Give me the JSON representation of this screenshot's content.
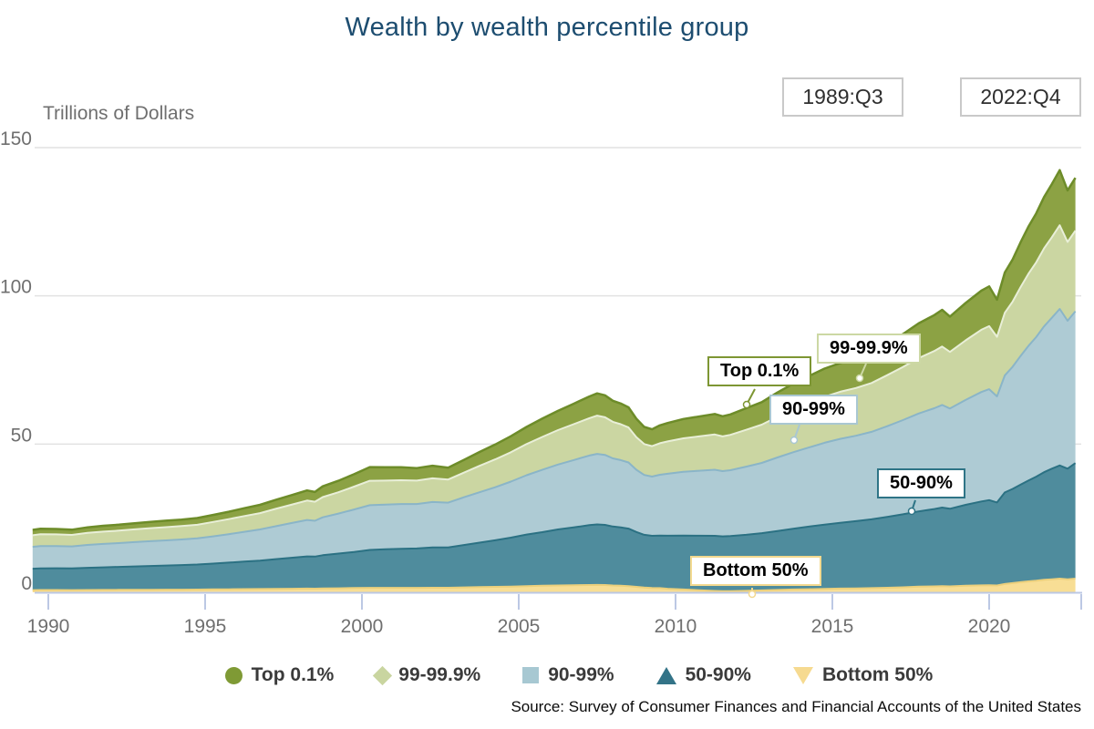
{
  "title": "Wealth by wealth percentile group",
  "controls": {
    "start_quarter": "1989:Q3",
    "end_quarter": "2022:Q4"
  },
  "unit_label": "Trillions of Dollars",
  "source_note": "Source: Survey of Consumer Finances and Financial Accounts of the United States",
  "colors": {
    "title_text": "#1d4d70",
    "axis_line": "#bcc8e4",
    "gridline": "#e2e2e2",
    "tick_text": "#6f6f6f"
  },
  "annotations": [
    {
      "label": "Top 0.1%",
      "color": "#7d9633"
    },
    {
      "label": "99-99.9%",
      "color": "#ccd8a4"
    },
    {
      "label": "90-99%",
      "color": "#a9c7d2"
    },
    {
      "label": "50-90%",
      "color": "#2e7486"
    },
    {
      "label": "Bottom 50%",
      "color": "#f3d98f"
    }
  ],
  "legend": {
    "items": [
      {
        "label": "Top 0.1%",
        "shape": "circle",
        "color": "#7f9a35"
      },
      {
        "label": "99-99.9%",
        "shape": "diamond",
        "color": "#c9d5a0"
      },
      {
        "label": "90-99%",
        "shape": "square",
        "color": "#a7c8d2"
      },
      {
        "label": "50-90%",
        "shape": "triangle-up",
        "color": "#337387"
      },
      {
        "label": "Bottom 50%",
        "shape": "triangle-down",
        "color": "#f6da90"
      }
    ]
  },
  "chart_data": {
    "type": "area",
    "stacked": true,
    "title": "Wealth by wealth percentile group",
    "ylabel": "Trillions of Dollars",
    "xlabel": "",
    "x_range": [
      1989.5,
      2022.75
    ],
    "ylim": [
      0,
      150
    ],
    "y_ticks": [
      0,
      50,
      100,
      150
    ],
    "x_ticks": [
      1990,
      1995,
      2000,
      2005,
      2010,
      2015,
      2020
    ],
    "grid": true,
    "legend_position": "bottom",
    "stack_order_note": "series listed bottom-to-top of the stack; values in trillions of dollars",
    "x": [
      1989.5,
      1989.75,
      1990.25,
      1990.75,
      1991.25,
      1991.75,
      1992.25,
      1992.75,
      1993.25,
      1993.75,
      1994.25,
      1994.75,
      1995.25,
      1995.75,
      1996.25,
      1996.75,
      1997.25,
      1997.75,
      1998.25,
      1998.5,
      1998.75,
      1999.25,
      1999.75,
      2000.25,
      2000.75,
      2001.25,
      2001.75,
      2002.25,
      2002.75,
      2003.25,
      2003.75,
      2004.25,
      2004.75,
      2005.25,
      2005.75,
      2006.25,
      2006.75,
      2007.25,
      2007.5,
      2007.75,
      2008,
      2008.25,
      2008.5,
      2008.75,
      2009,
      2009.25,
      2009.5,
      2009.75,
      2010.25,
      2010.75,
      2011.25,
      2011.5,
      2011.75,
      2012.25,
      2012.75,
      2013.25,
      2013.75,
      2014.25,
      2014.75,
      2015.25,
      2015.75,
      2016.25,
      2016.75,
      2017.25,
      2017.75,
      2018.25,
      2018.5,
      2018.75,
      2019.25,
      2019.75,
      2020,
      2020.25,
      2020.5,
      2020.75,
      2021,
      2021.25,
      2021.5,
      2021.75,
      2022,
      2022.25,
      2022.5,
      2022.75
    ],
    "series": [
      {
        "name": "Bottom 50%",
        "fill": "#f8de95",
        "edge": "#ecd07c",
        "values": [
          0.75,
          0.77,
          0.77,
          0.75,
          0.78,
          0.8,
          0.82,
          0.84,
          0.86,
          0.88,
          0.9,
          0.93,
          0.97,
          1.02,
          1.07,
          1.1,
          1.15,
          1.2,
          1.25,
          1.24,
          1.3,
          1.36,
          1.43,
          1.5,
          1.5,
          1.5,
          1.5,
          1.55,
          1.55,
          1.65,
          1.75,
          1.85,
          1.95,
          2.1,
          2.2,
          2.3,
          2.4,
          2.45,
          2.5,
          2.45,
          2.3,
          2.2,
          2.1,
          1.85,
          1.6,
          1.45,
          1.4,
          1.2,
          0.95,
          0.7,
          0.45,
          0.38,
          0.4,
          0.5,
          0.65,
          0.8,
          0.95,
          1.05,
          1.15,
          1.25,
          1.32,
          1.42,
          1.55,
          1.7,
          1.9,
          2.0,
          2.1,
          2.0,
          2.2,
          2.35,
          2.4,
          2.3,
          2.8,
          3.1,
          3.4,
          3.7,
          3.9,
          4.2,
          4.4,
          4.6,
          4.4,
          4.6
        ]
      },
      {
        "name": "50-90%",
        "fill": "#4f8c9d",
        "edge": "#2b7183",
        "values": [
          7.2,
          7.3,
          7.35,
          7.32,
          7.5,
          7.62,
          7.76,
          7.9,
          8.02,
          8.15,
          8.3,
          8.46,
          8.7,
          9.0,
          9.3,
          9.6,
          10.05,
          10.45,
          10.85,
          10.8,
          11.2,
          11.7,
          12.2,
          12.8,
          13.0,
          13.2,
          13.3,
          13.6,
          13.6,
          14.3,
          15.0,
          15.7,
          16.5,
          17.4,
          18.1,
          18.9,
          19.5,
          20.2,
          20.4,
          20.3,
          19.9,
          19.7,
          19.4,
          18.5,
          17.8,
          17.6,
          17.75,
          17.9,
          18.2,
          18.4,
          18.6,
          18.5,
          18.6,
          18.9,
          19.3,
          19.9,
          20.5,
          21.1,
          21.7,
          22.2,
          22.7,
          23.2,
          23.9,
          24.6,
          25.4,
          26.1,
          26.5,
          26.2,
          27.3,
          28.3,
          28.7,
          28.0,
          30.9,
          31.8,
          32.9,
          34.0,
          35.1,
          36.3,
          37.3,
          38.2,
          37.3,
          39.0
        ]
      },
      {
        "name": "90-99%",
        "fill": "#aecbd4",
        "edge": "#8ab5c8",
        "values": [
          7.4,
          7.55,
          7.5,
          7.42,
          7.7,
          7.9,
          8.02,
          8.2,
          8.35,
          8.5,
          8.62,
          8.8,
          9.2,
          9.6,
          10.05,
          10.5,
          11.1,
          11.7,
          12.3,
          12.1,
          12.8,
          13.5,
          14.3,
          15.1,
          15.1,
          15.1,
          15.0,
          15.3,
          15.1,
          16.1,
          17.0,
          17.9,
          18.9,
          20.0,
          21.0,
          21.9,
          22.7,
          23.5,
          23.8,
          23.6,
          23.0,
          22.7,
          22.3,
          21.0,
          20.2,
          20.0,
          20.5,
          20.9,
          21.5,
          21.9,
          22.3,
          22.0,
          22.2,
          23.0,
          23.7,
          24.8,
          25.8,
          26.7,
          27.6,
          28.3,
          28.8,
          29.5,
          30.6,
          31.8,
          33.0,
          34.0,
          34.6,
          33.8,
          35.4,
          36.9,
          37.4,
          35.8,
          39.5,
          41.2,
          43.4,
          45.4,
          47.1,
          49.2,
          50.9,
          52.8,
          49.9,
          51.2
        ]
      },
      {
        "name": "99-99.9%",
        "fill": "#cbd6a2",
        "edge": "#e9efd8",
        "values": [
          3.9,
          3.95,
          3.92,
          3.86,
          4.05,
          4.15,
          4.22,
          4.3,
          4.4,
          4.46,
          4.52,
          4.6,
          4.86,
          5.06,
          5.3,
          5.52,
          5.86,
          6.2,
          6.56,
          6.4,
          6.82,
          7.2,
          7.72,
          8.22,
          8.1,
          8.02,
          7.9,
          8.0,
          7.8,
          8.3,
          8.9,
          9.4,
          9.9,
          10.5,
          11.1,
          11.6,
          12.1,
          12.6,
          12.9,
          12.7,
          12.3,
          12.1,
          11.8,
          11.0,
          10.4,
          10.25,
          10.65,
          10.9,
          11.3,
          11.6,
          11.9,
          11.7,
          11.9,
          12.4,
          12.9,
          13.7,
          14.4,
          15.0,
          15.5,
          15.9,
          16.1,
          16.5,
          17.2,
          17.9,
          18.7,
          19.3,
          19.7,
          19.1,
          20.1,
          21.0,
          21.3,
          20.1,
          21.1,
          22.0,
          23.2,
          24.3,
          25.2,
          26.3,
          27.2,
          28.2,
          26.6,
          27.2
        ]
      },
      {
        "name": "Top 0.1%",
        "fill": "#8ca244",
        "edge": "#6d8c29",
        "values": [
          1.8,
          1.85,
          1.82,
          1.76,
          1.9,
          1.96,
          2.0,
          2.06,
          2.1,
          2.16,
          2.2,
          2.26,
          2.36,
          2.5,
          2.66,
          2.8,
          3.0,
          3.22,
          3.42,
          3.3,
          3.62,
          3.86,
          4.2,
          4.62,
          4.5,
          4.36,
          4.2,
          4.26,
          4.0,
          4.3,
          4.7,
          5.0,
          5.4,
          5.8,
          6.2,
          6.5,
          6.9,
          7.3,
          7.5,
          7.4,
          7.1,
          7.0,
          6.8,
          6.2,
          5.8,
          5.7,
          6.0,
          6.2,
          6.5,
          6.7,
          6.9,
          6.8,
          6.9,
          7.3,
          7.6,
          8.2,
          8.7,
          9.1,
          9.5,
          9.7,
          9.8,
          10.1,
          10.6,
          11.1,
          11.7,
          12.1,
          12.4,
          11.9,
          12.6,
          13.2,
          13.4,
          12.5,
          13.6,
          14.2,
          15.1,
          15.9,
          16.5,
          17.3,
          17.9,
          18.6,
          17.4,
          17.8
        ]
      }
    ]
  }
}
